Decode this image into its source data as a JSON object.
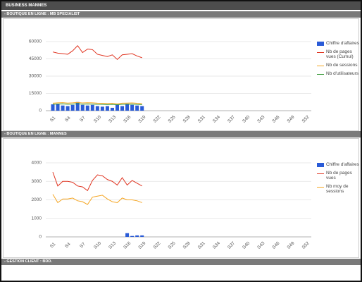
{
  "header": {
    "title": "BUSINESS MANNES"
  },
  "sections": [
    "- BOUTIQUE EN LIGNE : MB SPECIALIST",
    "- BOUTIQUE EN LIGNE : MANNES",
    "- GESTION CLIENT : BDD."
  ],
  "chart_data": [
    {
      "type": "combo",
      "categories": [
        "S1",
        null,
        null,
        "S4",
        null,
        null,
        "S7",
        null,
        null,
        "S10",
        null,
        null,
        "S13",
        null,
        null,
        "S16",
        null,
        null,
        "S19",
        null,
        null,
        "S22",
        null,
        null,
        "S25",
        null,
        null,
        "S28",
        null,
        null,
        "S31",
        null,
        null,
        "S34",
        null,
        null,
        "S37",
        null,
        null,
        "S40",
        null,
        null,
        "S43",
        null,
        null,
        "S46",
        null,
        null,
        "S49",
        null,
        null,
        "S52"
      ],
      "ylim": [
        0,
        60000
      ],
      "yticks": [
        0,
        15000,
        30000,
        45000,
        60000
      ],
      "grid": true,
      "series": [
        {
          "name": "Chiffre d'affaires",
          "type": "bar",
          "color": "#2a5bd7",
          "values": [
            5500,
            6000,
            4500,
            4000,
            5000,
            7500,
            5000,
            4500,
            5000,
            4000,
            3500,
            4000,
            2500,
            5500,
            4000,
            6000,
            5000,
            4500,
            4000,
            null,
            null,
            null,
            null,
            null,
            null,
            null,
            null,
            null,
            null,
            null,
            null,
            null,
            null,
            null,
            null,
            null,
            null,
            null,
            null,
            null,
            null,
            null,
            null,
            null,
            null,
            null,
            null,
            null,
            null,
            null,
            null,
            null
          ]
        },
        {
          "name": "Nb de pages vues (Cumul)",
          "type": "line",
          "color": "#e0331f",
          "values": [
            51000,
            50000,
            49500,
            49000,
            52000,
            56500,
            50500,
            53500,
            53000,
            49000,
            48000,
            47000,
            48500,
            44500,
            48500,
            49000,
            49500,
            47500,
            46000,
            null,
            null,
            null,
            null,
            null,
            null,
            null,
            null,
            null,
            null,
            null,
            null,
            null,
            null,
            null,
            null,
            null,
            null,
            null,
            null,
            null,
            null,
            null,
            null,
            null,
            null,
            null,
            null,
            null,
            null,
            null,
            null,
            null
          ]
        },
        {
          "name": "Nb de sessions",
          "type": "line",
          "color": "#f5a623",
          "values": [
            6500,
            6800,
            7000,
            6600,
            6800,
            7200,
            6700,
            6900,
            6800,
            6500,
            6400,
            6300,
            6400,
            6000,
            6500,
            6600,
            6700,
            6400,
            6200,
            null,
            null,
            null,
            null,
            null,
            null,
            null,
            null,
            null,
            null,
            null,
            null,
            null,
            null,
            null,
            null,
            null,
            null,
            null,
            null,
            null,
            null,
            null,
            null,
            null,
            null,
            null,
            null,
            null,
            null,
            null,
            null,
            null
          ]
        },
        {
          "name": "Nb d'utilisateurs",
          "type": "line",
          "color": "#3a9a3a",
          "values": [
            5500,
            5800,
            5900,
            5600,
            5700,
            6100,
            5600,
            5800,
            5700,
            5500,
            5400,
            5300,
            5400,
            5100,
            5500,
            5600,
            5700,
            5400,
            5200,
            null,
            null,
            null,
            null,
            null,
            null,
            null,
            null,
            null,
            null,
            null,
            null,
            null,
            null,
            null,
            null,
            null,
            null,
            null,
            null,
            null,
            null,
            null,
            null,
            null,
            null,
            null,
            null,
            null,
            null,
            null,
            null,
            null
          ]
        }
      ]
    },
    {
      "type": "combo",
      "categories": [
        "S1",
        null,
        null,
        "S4",
        null,
        null,
        "S7",
        null,
        null,
        "S10",
        null,
        null,
        "S13",
        null,
        null,
        "S16",
        null,
        null,
        "S19",
        null,
        null,
        "S22",
        null,
        null,
        "S25",
        null,
        null,
        "S28",
        null,
        null,
        "S31",
        null,
        null,
        "S34",
        null,
        null,
        "S37",
        null,
        null,
        "S40",
        null,
        null,
        "S43",
        null,
        null,
        "S46",
        null,
        null,
        "S49",
        null,
        null,
        "S52"
      ],
      "ylim": [
        0,
        4000
      ],
      "yticks": [
        0,
        1000,
        2000,
        3000,
        4000
      ],
      "grid": true,
      "series": [
        {
          "name": "Chiffre d'affaires",
          "type": "bar",
          "color": "#2a5bd7",
          "values": [
            0,
            0,
            0,
            0,
            0,
            0,
            0,
            0,
            0,
            0,
            0,
            0,
            0,
            0,
            0,
            200,
            50,
            80,
            80,
            null,
            null,
            null,
            null,
            null,
            null,
            null,
            null,
            null,
            null,
            null,
            null,
            null,
            null,
            null,
            null,
            null,
            null,
            null,
            null,
            null,
            null,
            null,
            null,
            null,
            null,
            null,
            null,
            null,
            null,
            null,
            null,
            null
          ]
        },
        {
          "name": "Nb de pages vues",
          "type": "line",
          "color": "#e0331f",
          "values": [
            3500,
            2750,
            3000,
            3000,
            2950,
            2750,
            2700,
            2500,
            3050,
            3350,
            3300,
            3100,
            3000,
            2800,
            3200,
            2800,
            3050,
            2900,
            2750,
            null,
            null,
            null,
            null,
            null,
            null,
            null,
            null,
            null,
            null,
            null,
            null,
            null,
            null,
            null,
            null,
            null,
            null,
            null,
            null,
            null,
            null,
            null,
            null,
            null,
            null,
            null,
            null,
            null,
            null,
            null,
            null,
            null
          ]
        },
        {
          "name": "Nb moy de sessions",
          "type": "line",
          "color": "#f5a623",
          "values": [
            2300,
            1850,
            2050,
            2050,
            2100,
            1950,
            1900,
            1750,
            2150,
            2200,
            2250,
            2050,
            1900,
            1850,
            2100,
            2000,
            2000,
            1950,
            1850,
            null,
            null,
            null,
            null,
            null,
            null,
            null,
            null,
            null,
            null,
            null,
            null,
            null,
            null,
            null,
            null,
            null,
            null,
            null,
            null,
            null,
            null,
            null,
            null,
            null,
            null,
            null,
            null,
            null,
            null,
            null,
            null,
            null
          ]
        }
      ]
    }
  ]
}
